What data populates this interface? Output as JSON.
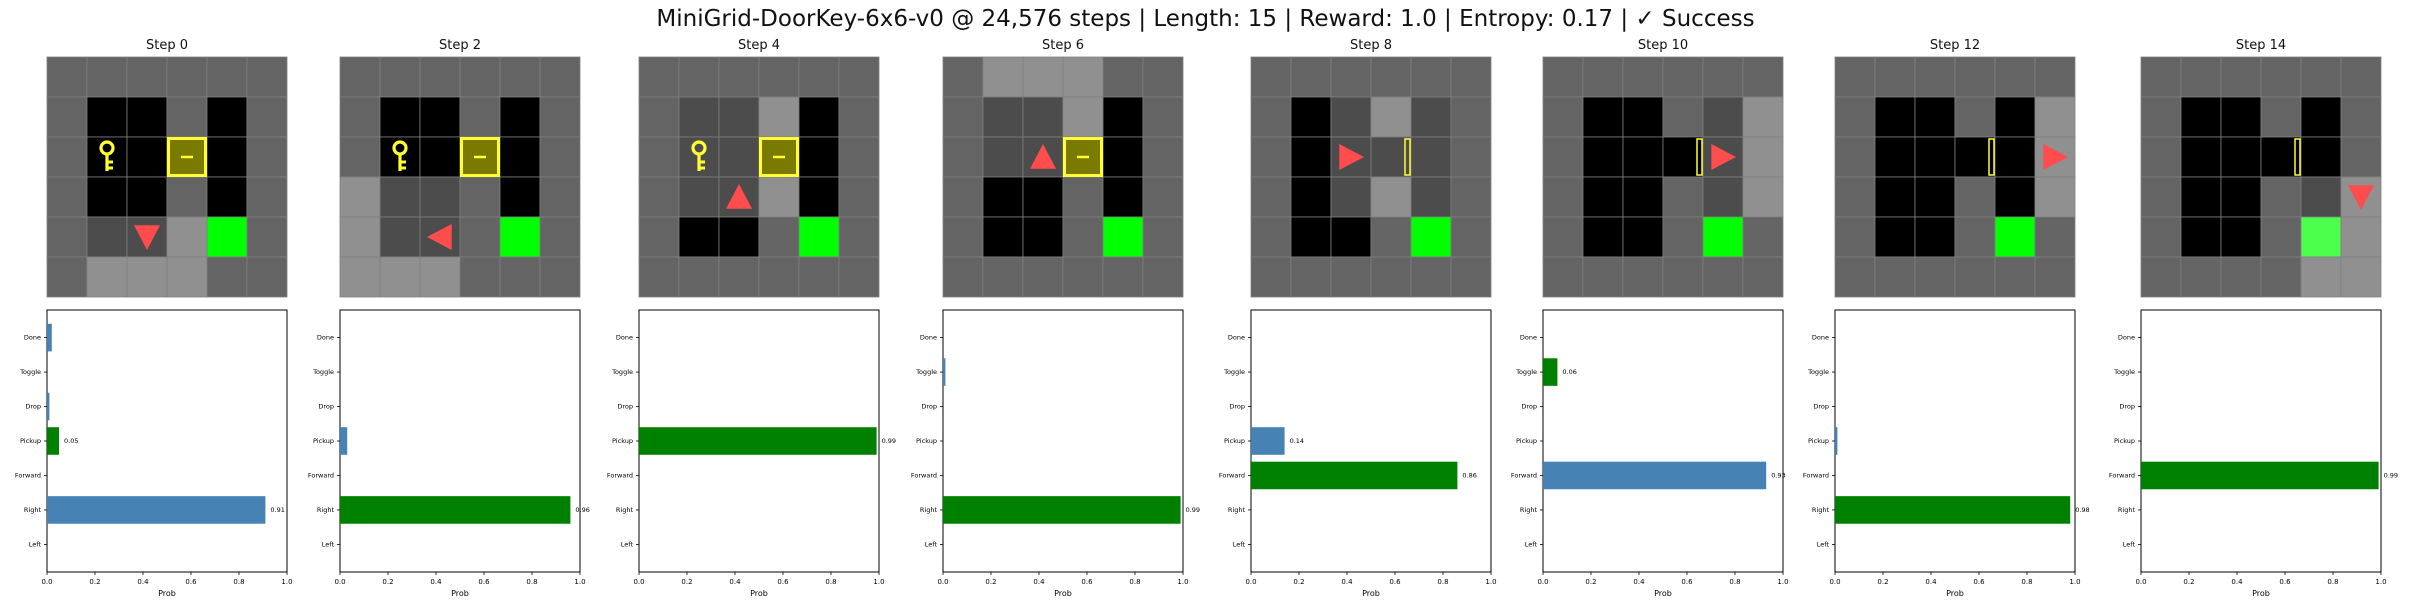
{
  "title": "MiniGrid-DoorKey-6x6-v0 @ 24,576 steps | Length: 15 | Reward: 1.0 | Entropy: 0.17 | ✓ Success",
  "actions": [
    "Done",
    "Toggle",
    "Drop",
    "Pickup",
    "Forward",
    "Right",
    "Left"
  ],
  "xticks": [
    "0.0",
    "0.2",
    "0.4",
    "0.6",
    "0.8",
    "1.0"
  ],
  "xlabel": "Prob",
  "colors": {
    "chosen": "#008000",
    "argmax": "#4682b4",
    "goal": "#00ff00",
    "agent": "#ff4d4d",
    "key_door": "#ffff33",
    "wall": "#646464",
    "floor": "#000000",
    "highlight": "#909090"
  },
  "steps": [
    {
      "label": "Step 0",
      "agent": {
        "row": 4,
        "col": 2,
        "dir": "down"
      },
      "key_visible": true,
      "door": "locked",
      "probs": {
        "Done": 0.02,
        "Toggle": 0.0,
        "Drop": 0.01,
        "Pickup": 0.05,
        "Forward": 0.0,
        "Right": 0.91,
        "Left": 0.0
      },
      "chosen": "Pickup",
      "bar_labels": [
        {
          "action": "Pickup",
          "text": "0.05"
        },
        {
          "action": "Right",
          "text": "0.91"
        }
      ]
    },
    {
      "label": "Step 2",
      "agent": {
        "row": 4,
        "col": 2,
        "dir": "left"
      },
      "key_visible": true,
      "door": "locked",
      "probs": {
        "Done": 0.0,
        "Toggle": 0.0,
        "Drop": 0.0,
        "Pickup": 0.03,
        "Forward": 0.0,
        "Right": 0.96,
        "Left": 0.0
      },
      "chosen": "Right",
      "bar_labels": [
        {
          "action": "Right",
          "text": "0.96"
        }
      ]
    },
    {
      "label": "Step 4",
      "agent": {
        "row": 3,
        "col": 2,
        "dir": "up"
      },
      "key_visible": true,
      "door": "locked",
      "probs": {
        "Done": 0.0,
        "Toggle": 0.0,
        "Drop": 0.0,
        "Pickup": 0.99,
        "Forward": 0.0,
        "Right": 0.0,
        "Left": 0.0
      },
      "chosen": "Pickup",
      "bar_labels": [
        {
          "action": "Pickup",
          "text": "0.99"
        }
      ]
    },
    {
      "label": "Step 6",
      "agent": {
        "row": 2,
        "col": 2,
        "dir": "up"
      },
      "key_visible": false,
      "door": "locked",
      "probs": {
        "Done": 0.0,
        "Toggle": 0.01,
        "Drop": 0.0,
        "Pickup": 0.0,
        "Forward": 0.0,
        "Right": 0.99,
        "Left": 0.0
      },
      "chosen": "Right",
      "bar_labels": [
        {
          "action": "Right",
          "text": "0.99"
        }
      ]
    },
    {
      "label": "Step 8",
      "agent": {
        "row": 2,
        "col": 2,
        "dir": "right"
      },
      "key_visible": false,
      "door": "open",
      "probs": {
        "Done": 0.0,
        "Toggle": 0.0,
        "Drop": 0.0,
        "Pickup": 0.14,
        "Forward": 0.86,
        "Right": 0.0,
        "Left": 0.0
      },
      "chosen": "Forward",
      "bar_labels": [
        {
          "action": "Pickup",
          "text": "0.14"
        },
        {
          "action": "Forward",
          "text": "0.86"
        }
      ]
    },
    {
      "label": "Step 10",
      "agent": {
        "row": 2,
        "col": 4,
        "dir": "right"
      },
      "key_visible": false,
      "door": "open",
      "probs": {
        "Done": 0.0,
        "Toggle": 0.06,
        "Drop": 0.0,
        "Pickup": 0.0,
        "Forward": 0.93,
        "Right": 0.0,
        "Left": 0.0
      },
      "chosen": "Toggle",
      "bar_labels": [
        {
          "action": "Toggle",
          "text": "0.06"
        },
        {
          "action": "Forward",
          "text": "0.93"
        }
      ]
    },
    {
      "label": "Step 12",
      "agent": {
        "row": 2,
        "col": 5,
        "dir": "right"
      },
      "key_visible": false,
      "door": "open",
      "probs": {
        "Done": 0.0,
        "Toggle": 0.0,
        "Drop": 0.0,
        "Pickup": 0.01,
        "Forward": 0.0,
        "Right": 0.98,
        "Left": 0.0
      },
      "chosen": "Right",
      "bar_labels": [
        {
          "action": "Right",
          "text": "0.98"
        }
      ]
    },
    {
      "label": "Step 14",
      "agent": {
        "row": 3,
        "col": 5,
        "dir": "down"
      },
      "key_visible": false,
      "door": "open",
      "probs": {
        "Done": 0.0,
        "Toggle": 0.0,
        "Drop": 0.0,
        "Pickup": 0.0,
        "Forward": 0.99,
        "Right": 0.0,
        "Left": 0.0
      },
      "chosen": "Forward",
      "bar_labels": [
        {
          "action": "Forward",
          "text": "0.99"
        }
      ]
    }
  ],
  "chart_data": {
    "type": "bar",
    "title": "MiniGrid-DoorKey-6x6-v0 @ 24,576 steps | Length: 15 | Reward: 1.0 | Entropy: 0.17 | ✓ Success",
    "categories": [
      "Done",
      "Toggle",
      "Drop",
      "Pickup",
      "Forward",
      "Right",
      "Left"
    ],
    "xlabel": "Prob",
    "ylabel": "",
    "xlim": [
      0,
      1
    ],
    "orientation": "horizontal",
    "grid": false,
    "series": [
      {
        "name": "Step 0",
        "values": [
          0.02,
          0.0,
          0.01,
          0.05,
          0.0,
          0.91,
          0.0
        ]
      },
      {
        "name": "Step 2",
        "values": [
          0.0,
          0.0,
          0.0,
          0.03,
          0.0,
          0.96,
          0.0
        ]
      },
      {
        "name": "Step 4",
        "values": [
          0.0,
          0.0,
          0.0,
          0.99,
          0.0,
          0.0,
          0.0
        ]
      },
      {
        "name": "Step 6",
        "values": [
          0.0,
          0.01,
          0.0,
          0.0,
          0.0,
          0.99,
          0.0
        ]
      },
      {
        "name": "Step 8",
        "values": [
          0.0,
          0.0,
          0.0,
          0.14,
          0.86,
          0.0,
          0.0
        ]
      },
      {
        "name": "Step 10",
        "values": [
          0.0,
          0.06,
          0.0,
          0.0,
          0.93,
          0.0,
          0.0
        ]
      },
      {
        "name": "Step 12",
        "values": [
          0.0,
          0.0,
          0.0,
          0.01,
          0.0,
          0.98,
          0.0
        ]
      },
      {
        "name": "Step 14",
        "values": [
          0.0,
          0.0,
          0.0,
          0.0,
          0.99,
          0.0,
          0.0
        ]
      }
    ]
  }
}
